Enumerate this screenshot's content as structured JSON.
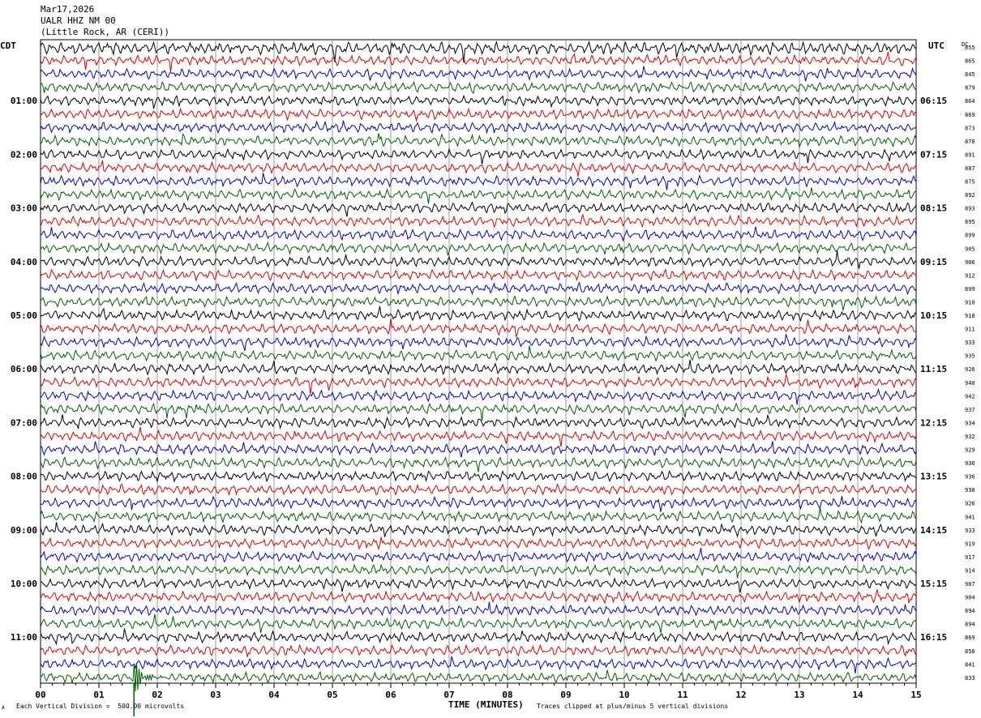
{
  "header": {
    "date": "Mar17,2026",
    "station": "UALR HHZ NM 00",
    "location": "(Little Rock, AR (CERI))"
  },
  "left_axis_title": "CDT",
  "right_axis_title": "UTC",
  "dc_title": "DC",
  "footer": {
    "scale_note": "Each Vertical Division =  500.00 microvolts",
    "clip_note": "Traces clipped at plus/minus 5 vertical divisions",
    "marker_glyph": "A"
  },
  "colors": {
    "black": "#000000",
    "red": "#dd0000",
    "blue": "#0000cc",
    "green": "#006000"
  },
  "chart_data": {
    "type": "line",
    "title": "",
    "xlabel": "TIME (MINUTES)",
    "ylabel": "",
    "xlim": [
      0,
      15
    ],
    "x_ticks": [
      "00",
      "01",
      "02",
      "03",
      "04",
      "05",
      "06",
      "07",
      "08",
      "09",
      "10",
      "11",
      "12",
      "13",
      "14",
      "15"
    ],
    "trace_minutes": 15,
    "trace_count": 48,
    "trace_color_cycle": [
      "black",
      "red",
      "blue",
      "green"
    ],
    "left_hour_labels": [
      "01:00",
      "02:00",
      "03:00",
      "04:00",
      "05:00",
      "06:00",
      "07:00",
      "08:00",
      "09:00",
      "10:00",
      "11:00"
    ],
    "right_hour_labels": [
      "06:15",
      "07:15",
      "08:15",
      "09:15",
      "10:15",
      "11:15",
      "12:15",
      "13:15",
      "14:15",
      "15:15",
      "16:15"
    ],
    "dc_offsets": [
      855,
      865,
      845,
      879,
      864,
      869,
      873,
      878,
      891,
      887,
      875,
      892,
      893,
      895,
      899,
      905,
      906,
      912,
      899,
      910,
      918,
      911,
      933,
      935,
      926,
      940,
      942,
      937,
      934,
      932,
      929,
      936,
      936,
      930,
      926,
      941,
      933,
      919,
      917,
      914,
      907,
      904,
      894,
      894,
      869,
      858,
      841,
      833
    ],
    "event": {
      "minute": 1.6,
      "trace_index": 47
    }
  }
}
